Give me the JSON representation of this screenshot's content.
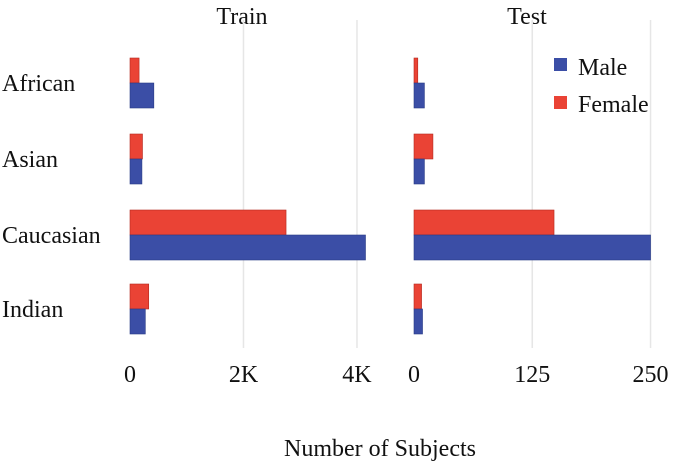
{
  "chart_data": {
    "type": "bar",
    "orientation": "horizontal",
    "xlabel": "Number of Subjects",
    "categories": [
      "African",
      "Asian",
      "Caucasian",
      "Indian"
    ],
    "legend": {
      "placement": "top-right",
      "entries": [
        {
          "name": "Male",
          "color": "#3b4ea6"
        },
        {
          "name": "Female",
          "color": "#ea4335"
        }
      ]
    },
    "grid": "vertical",
    "panels": [
      {
        "title": "Train",
        "xlim": [
          0,
          4300
        ],
        "ticks": [
          {
            "value": 0,
            "label": "0"
          },
          {
            "value": 2000,
            "label": "2K"
          },
          {
            "value": 4000,
            "label": "4K"
          }
        ],
        "series": [
          {
            "name": "Male",
            "values": [
              420,
              210,
              4150,
              270
            ]
          },
          {
            "name": "Female",
            "values": [
              160,
              220,
              2750,
              330
            ]
          }
        ]
      },
      {
        "title": "Test",
        "xlim": [
          0,
          260
        ],
        "ticks": [
          {
            "value": 0,
            "label": "0"
          },
          {
            "value": 125,
            "label": "125"
          },
          {
            "value": 250,
            "label": "250"
          }
        ],
        "series": [
          {
            "name": "Male",
            "values": [
              11,
              11,
              250,
              9
            ]
          },
          {
            "name": "Female",
            "values": [
              4,
              20,
              148,
              8
            ]
          }
        ]
      }
    ]
  }
}
